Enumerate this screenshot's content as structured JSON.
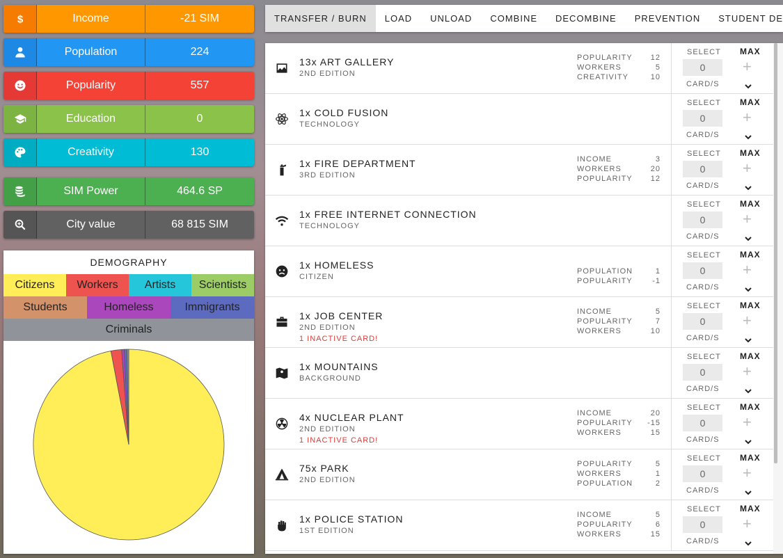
{
  "stats": [
    {
      "icon": "dollar-icon",
      "label": "Income",
      "value": "-21 SIM",
      "color": "#ff9800",
      "icon_color": "#f57c00"
    },
    {
      "icon": "person-icon",
      "label": "Population",
      "value": "224",
      "color": "#2196f3",
      "icon_color": "#1e88e5"
    },
    {
      "icon": "smile-icon",
      "label": "Popularity",
      "value": "557",
      "color": "#f44336",
      "icon_color": "#e53935"
    },
    {
      "icon": "graduation-cap-icon",
      "label": "Education",
      "value": "0",
      "color": "#8bc34a",
      "icon_color": "#7cb342"
    },
    {
      "icon": "palette-icon",
      "label": "Creativity",
      "value": "130",
      "color": "#00bcd4",
      "icon_color": "#00acc1"
    },
    {
      "icon": "coins-icon",
      "label": "SIM Power",
      "value": "464.6 SP",
      "color": "#4caf50",
      "icon_color": "#43a047"
    },
    {
      "icon": "magnifier-icon",
      "label": "City value",
      "value": "68 815 SIM",
      "color": "#616161",
      "icon_color": "#555555"
    }
  ],
  "demography": {
    "title": "DEMOGRAPHY",
    "legend": [
      [
        {
          "label": "Citizens",
          "color": "#ffee58"
        },
        {
          "label": "Workers",
          "color": "#ef5350"
        },
        {
          "label": "Artists",
          "color": "#26c6da"
        },
        {
          "label": "Scientists",
          "color": "#9ccc65"
        }
      ],
      [
        {
          "label": "Students",
          "color": "#d4926a"
        },
        {
          "label": "Homeless",
          "color": "#ab47bc"
        },
        {
          "label": "Immigrants",
          "color": "#5c6bc0"
        }
      ],
      [
        {
          "label": "Criminals",
          "color": "#90939a"
        }
      ]
    ]
  },
  "chart_data": {
    "type": "pie",
    "title": "DEMOGRAPHY",
    "categories": [
      "Citizens",
      "Workers",
      "Artists",
      "Scientists",
      "Students",
      "Homeless",
      "Immigrants",
      "Criminals"
    ],
    "values": [
      97.0,
      1.8,
      0,
      0,
      0,
      0.45,
      0.45,
      0.3
    ],
    "colors": [
      "#ffee58",
      "#ef5350",
      "#26c6da",
      "#9ccc65",
      "#d4926a",
      "#ab47bc",
      "#5c6bc0",
      "#90939a"
    ]
  },
  "tabs": [
    "TRANSFER / BURN",
    "LOAD",
    "UNLOAD",
    "COMBINE",
    "DECOMBINE",
    "PREVENTION",
    "STUDENT DEBT"
  ],
  "controls": {
    "select_label": "SELECT",
    "max_label": "MAX",
    "cards_label": "CARD/S",
    "plus": "+",
    "qty": "0"
  },
  "cards": [
    {
      "icon": "image-icon",
      "name": "13x ART GALLERY",
      "sub": "2ND EDITION",
      "warn": "",
      "stats": [
        [
          "POPULARITY",
          "12"
        ],
        [
          "WORKERS",
          "5"
        ],
        [
          "CREATIVITY",
          "10"
        ]
      ]
    },
    {
      "icon": "atom-icon",
      "name": "1x COLD FUSION",
      "sub": "TECHNOLOGY",
      "warn": "",
      "stats": []
    },
    {
      "icon": "fire-extinguisher-icon",
      "name": "1x FIRE DEPARTMENT",
      "sub": "3RD EDITION",
      "warn": "",
      "stats": [
        [
          "INCOME",
          "3"
        ],
        [
          "WORKERS",
          "20"
        ],
        [
          "POPULARITY",
          "12"
        ]
      ]
    },
    {
      "icon": "wifi-icon",
      "name": "1x FREE INTERNET CONNECTION",
      "sub": "TECHNOLOGY",
      "warn": "",
      "stats": []
    },
    {
      "icon": "sad-face-icon",
      "name": "1x HOMELESS",
      "sub": "CITIZEN",
      "warn": "",
      "stats": [
        [
          "POPULATION",
          "1"
        ],
        [
          "POPULARITY",
          "-1"
        ]
      ]
    },
    {
      "icon": "briefcase-icon",
      "name": "1x JOB CENTER",
      "sub": "2ND EDITION",
      "warn": "1 INACTIVE CARD!",
      "stats": [
        [
          "INCOME",
          "5"
        ],
        [
          "POPULARITY",
          "7"
        ],
        [
          "WORKERS",
          "10"
        ]
      ]
    },
    {
      "icon": "map-icon",
      "name": "1x MOUNTAINS",
      "sub": "BACKGROUND",
      "warn": "",
      "stats": []
    },
    {
      "icon": "radiation-icon",
      "name": "4x NUCLEAR PLANT",
      "sub": "2ND EDITION",
      "warn": "1 INACTIVE CARD!",
      "stats": [
        [
          "INCOME",
          "20"
        ],
        [
          "POPULARITY",
          "-15"
        ],
        [
          "WORKERS",
          "15"
        ]
      ]
    },
    {
      "icon": "tent-icon",
      "name": "75x PARK",
      "sub": "2ND EDITION",
      "warn": "",
      "stats": [
        [
          "POPULARITY",
          "5"
        ],
        [
          "WORKERS",
          "1"
        ],
        [
          "POPULATION",
          "2"
        ]
      ]
    },
    {
      "icon": "fist-icon",
      "name": "1x POLICE STATION",
      "sub": "1ST EDITION",
      "warn": "",
      "stats": [
        [
          "INCOME",
          "5"
        ],
        [
          "POPULARITY",
          "6"
        ],
        [
          "WORKERS",
          "15"
        ]
      ]
    }
  ]
}
